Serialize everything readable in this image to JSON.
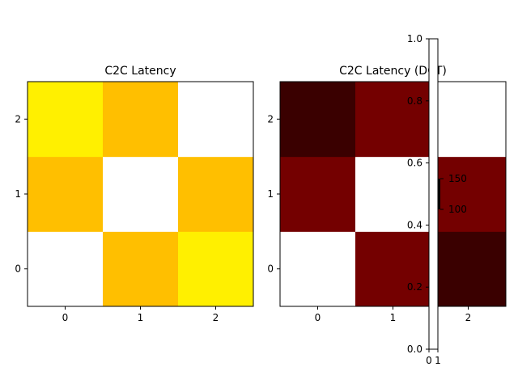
{
  "chart_data": [
    {
      "type": "heatmap",
      "title": "C2C Latency",
      "x_ticks": [
        "0",
        "1",
        "2"
      ],
      "y_ticks": [
        "0",
        "1",
        "2"
      ],
      "rows_bottom_to_top": [
        [
          null,
          157,
          170
        ],
        [
          157,
          null,
          157
        ],
        [
          170,
          157,
          null
        ]
      ],
      "colormap": "hot",
      "missing_color": "#ffffff"
    },
    {
      "type": "heatmap",
      "title": "C2C Latency (DCT)",
      "x_ticks": [
        "0",
        "1",
        "2"
      ],
      "y_ticks": [
        "0",
        "1",
        "2"
      ],
      "rows_bottom_to_top": [
        [
          null,
          70,
          55
        ],
        [
          70,
          null,
          70
        ],
        [
          55,
          70,
          null
        ]
      ],
      "colormap": "hot",
      "missing_color": "#ffffff"
    },
    {
      "type": "colorbar",
      "axis_ticks": [
        "0.0",
        "0.2",
        "0.4",
        "0.6",
        "0.8",
        "1.0"
      ],
      "x_ticks": [
        "0",
        "1"
      ],
      "inset_ticks": [
        {
          "value": 150,
          "label": "150"
        },
        {
          "value": 100,
          "label": "100"
        }
      ]
    }
  ]
}
